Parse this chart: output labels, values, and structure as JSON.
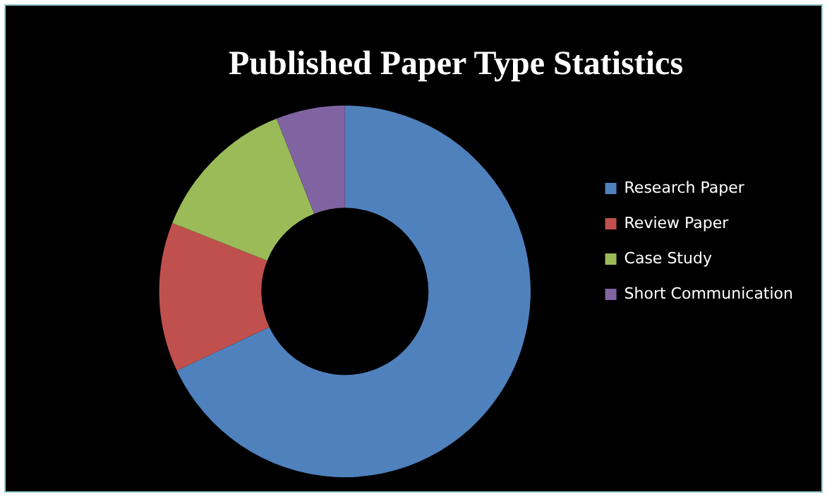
{
  "chart_data": {
    "type": "donut",
    "title": "Published Paper Type Statistics",
    "categories": [
      "Research Paper",
      "Review Paper",
      "Case Study",
      "Short Communication"
    ],
    "values": [
      68,
      13,
      13,
      6
    ],
    "colors": [
      "#4f81bd",
      "#c0504d",
      "#9bbb59",
      "#8064a2"
    ],
    "legend": "right"
  }
}
